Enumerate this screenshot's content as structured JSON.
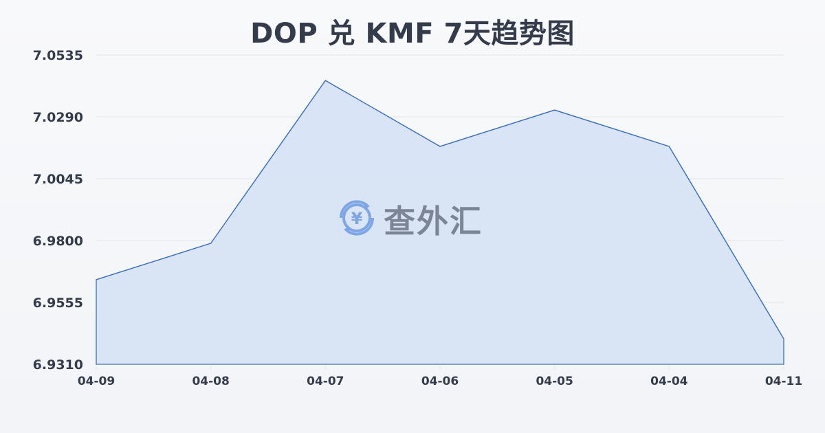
{
  "title": "DOP 兑 KMF 7天趋势图",
  "watermark": {
    "text": "查外汇",
    "icon": "yen-exchange-icon"
  },
  "colors": {
    "line": "#3a6fc4",
    "fill": "#d4e0f5",
    "grid": "#e3e6ea",
    "text": "#343c4c"
  },
  "chart_data": {
    "type": "area",
    "title": "DOP 兑 KMF 7天趋势图",
    "xlabel": "",
    "ylabel": "",
    "categories": [
      "04-09",
      "04-08",
      "04-07",
      "04-06",
      "04-05",
      "04-04",
      "04-11"
    ],
    "series": [
      {
        "name": "DOP/KMF",
        "values": [
          6.9645,
          6.9789,
          7.0434,
          7.0173,
          7.0317,
          7.0173,
          6.9411
        ]
      }
    ],
    "yticks": [
      "7.0535",
      "7.0290",
      "7.0045",
      "6.9800",
      "6.9555",
      "6.9310"
    ],
    "ylim": [
      6.931,
      7.0535
    ],
    "grid": true,
    "legend": "none"
  }
}
